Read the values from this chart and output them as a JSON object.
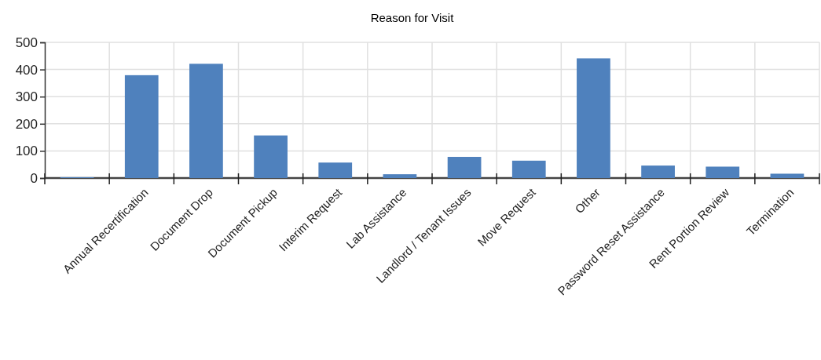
{
  "chart_data": {
    "type": "bar",
    "title": "Reason for Visit",
    "categories": [
      null,
      "Annual Recertification",
      "Document Drop",
      "Document Pickup",
      "Interim Request",
      "Lab Assistance",
      "Landlord / Tenant Issues",
      "Move Request",
      "Other",
      "Password Reset Assistance",
      "Rent Portion Review",
      "Termination"
    ],
    "values": [
      3,
      379,
      421,
      157,
      57,
      14,
      78,
      64,
      441,
      46,
      42,
      16
    ],
    "color": "#4f81bd",
    "ylim": [
      0,
      500
    ],
    "yticks": [
      0,
      100,
      200,
      300,
      400,
      500
    ],
    "grid": true
  }
}
